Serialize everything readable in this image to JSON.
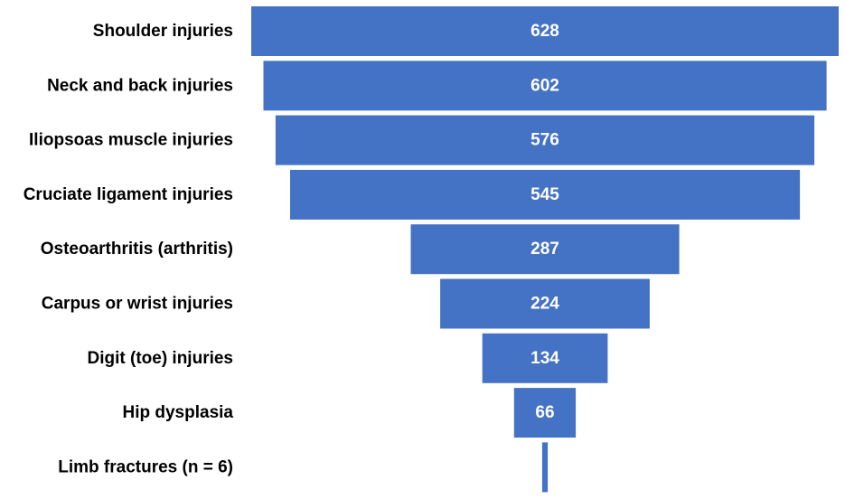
{
  "chart_data": {
    "type": "bar",
    "orientation": "horizontal-funnel",
    "categories": [
      "Shoulder injuries",
      "Neck and back injuries",
      "Iliopsoas muscle injuries",
      "Cruciate ligament injuries",
      "Osteoarthritis (arthritis)",
      "Carpus or wrist injuries",
      "Digit (toe) injuries",
      "Hip dysplasia",
      "Limb fractures (n = 6)"
    ],
    "values": [
      628,
      602,
      576,
      545,
      287,
      224,
      134,
      66,
      6
    ],
    "data_labels": [
      "628",
      "602",
      "576",
      "545",
      "287",
      "224",
      "134",
      "66",
      ""
    ],
    "title": "",
    "xlabel": "",
    "ylabel": "",
    "grid": false,
    "legend": "none",
    "bar_color": "#4472C4"
  }
}
